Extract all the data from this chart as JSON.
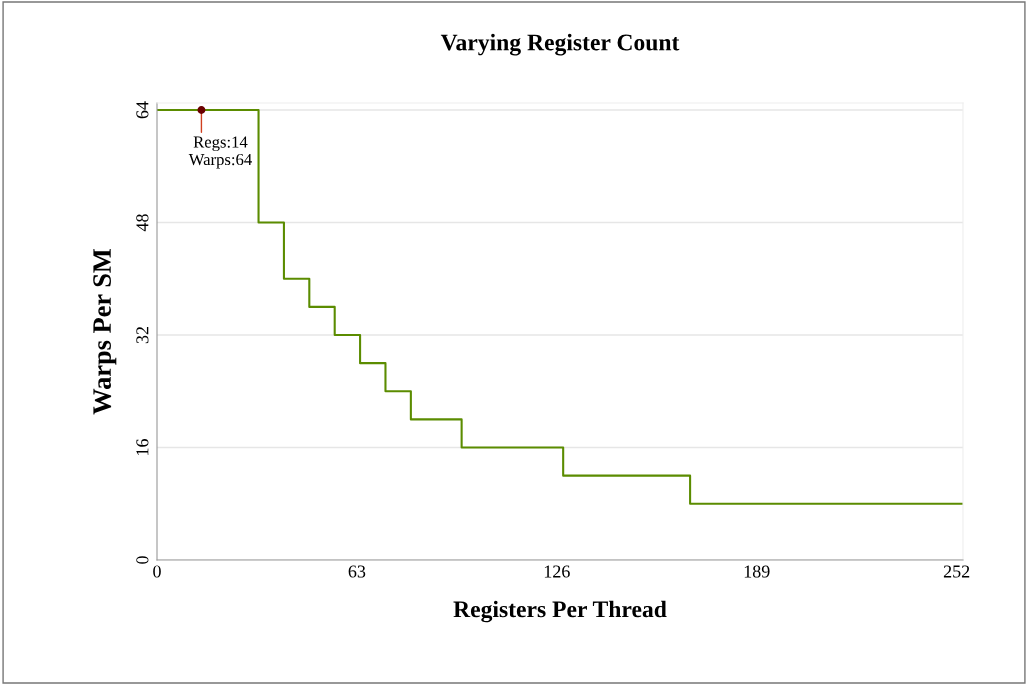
{
  "chart_data": {
    "type": "step",
    "title": "Varying Register Count",
    "xlabel": "Registers Per Thread",
    "ylabel": "Warps Per SM",
    "series": [
      {
        "color": "#5b8c00",
        "x": [
          0,
          32,
          40,
          48,
          56,
          64,
          72,
          80,
          96,
          128,
          168,
          254
        ],
        "values": [
          64,
          48,
          40,
          36,
          32,
          28,
          24,
          20,
          16,
          12,
          8,
          8
        ]
      },
      {
        "type": "scatter",
        "marker": "circle",
        "color": "#6b0000",
        "x": [
          14
        ],
        "values": [
          64
        ]
      }
    ],
    "annotations": [
      {
        "text": "Regs:14\nWarps:64",
        "x": 14,
        "y": 64
      }
    ],
    "xlim": [
      0,
      254
    ],
    "ylim": [
      0,
      65
    ],
    "xticks": [
      0,
      63,
      126,
      189,
      252
    ],
    "yticks": [
      0,
      16,
      32,
      48,
      64
    ],
    "grid": "y",
    "marker": "none",
    "line_style": "solid",
    "legend": false
  }
}
